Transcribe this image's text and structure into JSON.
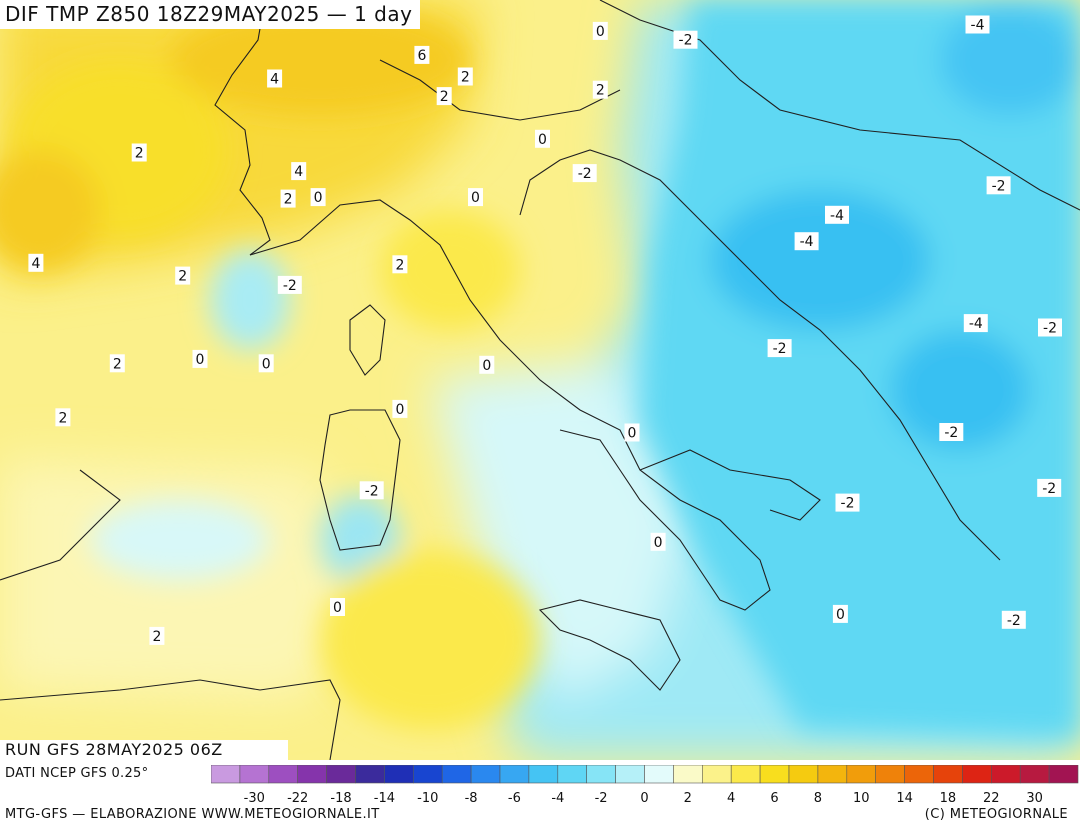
{
  "title": "DIF TMP Z850 18Z29MAY2025 — 1 day",
  "run_label": "RUN GFS 28MAY2025 06Z",
  "source_label": "DATI NCEP GFS 0.25°",
  "credit_left": "MTG-GFS — ELABORAZIONE WWW.METEOGIORNALE.IT",
  "credit_right": "(C) METEOGIORNALE",
  "scale": {
    "colors": [
      "#c99ae0",
      "#b573d2",
      "#9d4fc0",
      "#8534ab",
      "#6a2a9a",
      "#3b2b9c",
      "#1f2fb6",
      "#1845d0",
      "#1f66e6",
      "#2a88ef",
      "#37a7f2",
      "#45c4f3",
      "#5fd6f4",
      "#86e4f6",
      "#b5f0f8",
      "#e3fbfb",
      "#fafac8",
      "#fbf28a",
      "#fbe94b",
      "#f8de1e",
      "#f5cb10",
      "#f3b50d",
      "#f19d0b",
      "#ef820a",
      "#ec6509",
      "#e6430b",
      "#dd2414",
      "#cc1a2a",
      "#b71a40",
      "#a21452"
    ],
    "tick_labels": [
      "-30",
      "-22",
      "-18",
      "-14",
      "-10",
      "-8",
      "-6",
      "-4",
      "-2",
      "0",
      "2",
      "4",
      "6",
      "8",
      "10",
      "14",
      "18",
      "22",
      "30"
    ]
  },
  "contour_labels": [
    {
      "text": "0",
      "lon": 14.23,
      "lat": 48.67
    },
    {
      "text": "-2",
      "lon": 16.25,
      "lat": 48.49
    },
    {
      "text": "-4",
      "lon": 23.17,
      "lat": 48.8
    },
    {
      "text": "6",
      "lon": 10.0,
      "lat": 48.18
    },
    {
      "text": "4",
      "lon": 6.51,
      "lat": 47.7
    },
    {
      "text": "2",
      "lon": 11.03,
      "lat": 47.74
    },
    {
      "text": "2",
      "lon": 10.53,
      "lat": 47.34
    },
    {
      "text": "2",
      "lon": 14.23,
      "lat": 47.47
    },
    {
      "text": "0",
      "lon": 12.86,
      "lat": 46.47
    },
    {
      "text": "2",
      "lon": 3.3,
      "lat": 46.19
    },
    {
      "text": "4",
      "lon": 7.08,
      "lat": 45.81
    },
    {
      "text": "-2",
      "lon": 13.86,
      "lat": 45.77
    },
    {
      "text": "-2",
      "lon": 23.67,
      "lat": 45.52
    },
    {
      "text": "2",
      "lon": 6.83,
      "lat": 45.25
    },
    {
      "text": "0",
      "lon": 7.54,
      "lat": 45.28
    },
    {
      "text": "0",
      "lon": 11.27,
      "lat": 45.28
    },
    {
      "text": "-4",
      "lon": 19.84,
      "lat": 44.92
    },
    {
      "text": "-4",
      "lon": 19.12,
      "lat": 44.38
    },
    {
      "text": "4",
      "lon": 0.85,
      "lat": 43.94
    },
    {
      "text": "2",
      "lon": 4.33,
      "lat": 43.68
    },
    {
      "text": "-2",
      "lon": 6.87,
      "lat": 43.49
    },
    {
      "text": "2",
      "lon": 9.48,
      "lat": 43.91
    },
    {
      "text": "-4",
      "lon": 23.13,
      "lat": 42.71
    },
    {
      "text": "-2",
      "lon": 24.89,
      "lat": 42.62
    },
    {
      "text": "-2",
      "lon": 18.48,
      "lat": 42.2
    },
    {
      "text": "2",
      "lon": 2.78,
      "lat": 41.89
    },
    {
      "text": "0",
      "lon": 4.74,
      "lat": 41.98
    },
    {
      "text": "0",
      "lon": 6.31,
      "lat": 41.89
    },
    {
      "text": "0",
      "lon": 11.54,
      "lat": 41.86
    },
    {
      "text": "2",
      "lon": 1.49,
      "lat": 40.79
    },
    {
      "text": "0",
      "lon": 9.48,
      "lat": 40.96
    },
    {
      "text": "0",
      "lon": 14.98,
      "lat": 40.48
    },
    {
      "text": "-2",
      "lon": 22.55,
      "lat": 40.49
    },
    {
      "text": "-2",
      "lon": 24.87,
      "lat": 39.35
    },
    {
      "text": "-2",
      "lon": 8.81,
      "lat": 39.3
    },
    {
      "text": "-2",
      "lon": 20.09,
      "lat": 39.05
    },
    {
      "text": "0",
      "lon": 15.6,
      "lat": 38.25
    },
    {
      "text": "0",
      "lon": 8.0,
      "lat": 36.92
    },
    {
      "text": "0",
      "lon": 19.92,
      "lat": 36.78
    },
    {
      "text": "-2",
      "lon": 24.03,
      "lat": 36.66
    },
    {
      "text": "2",
      "lon": 3.72,
      "lat": 36.33
    }
  ]
}
